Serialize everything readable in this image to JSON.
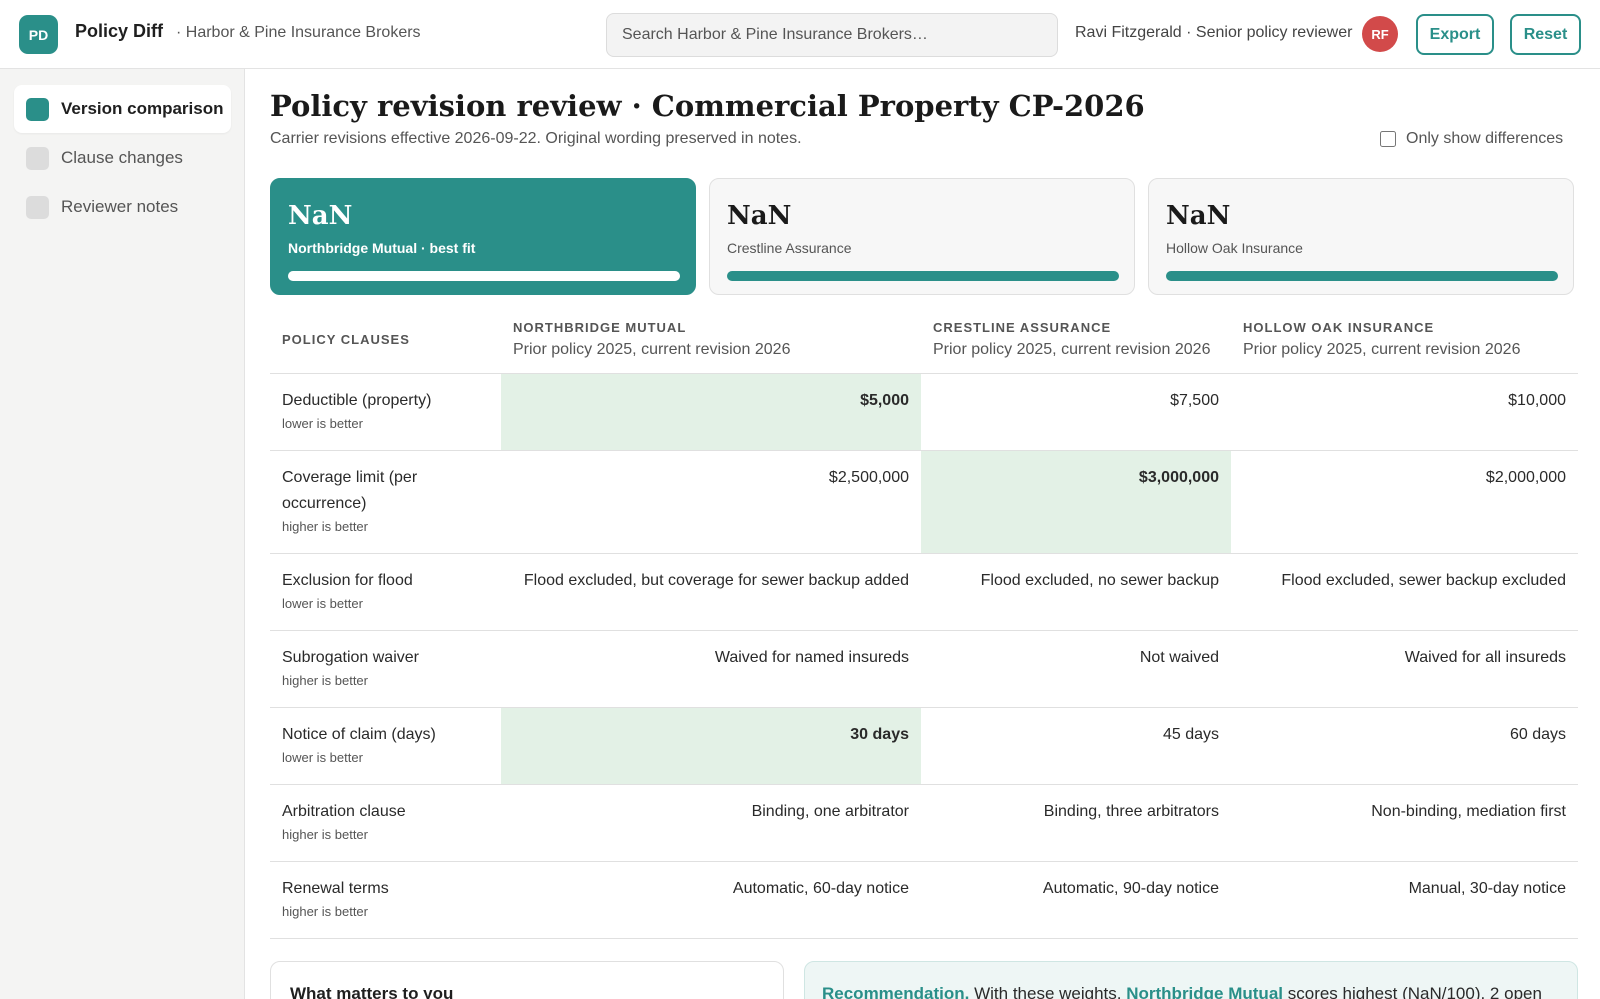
{
  "header": {
    "logo": "PD",
    "app_name": "Policy Diff",
    "org": "· Harbor & Pine Insurance Brokers",
    "search_placeholder": "Search Harbor & Pine Insurance Brokers…",
    "user": "Ravi Fitzgerald · Senior policy reviewer",
    "avatar": "RF",
    "export_label": "Export",
    "reset_label": "Reset"
  },
  "sidebar": {
    "items": [
      {
        "label": "Version comparison",
        "active": true
      },
      {
        "label": "Clause changes",
        "active": false
      },
      {
        "label": "Reviewer notes",
        "active": false
      }
    ]
  },
  "page": {
    "title": "Policy revision review · Commercial Property CP-2026",
    "subtitle": "Carrier revisions effective 2026-09-22. Original wording preserved in notes.",
    "diff_toggle_label": "Only show differences",
    "diff_toggle_checked": false
  },
  "score_cards": [
    {
      "score": "NaN",
      "name": "Northbridge Mutual · best fit",
      "best": true,
      "fill_fraction": 1.0
    },
    {
      "score": "NaN",
      "name": "Crestline Assurance",
      "best": false,
      "fill_fraction": 1.0
    },
    {
      "score": "NaN",
      "name": "Hollow Oak Insurance",
      "best": false,
      "fill_fraction": 1.0
    }
  ],
  "table": {
    "clauses_header": "POLICY CLAUSES",
    "carriers": [
      {
        "name": "NORTHBRIDGE MUTUAL",
        "sub": "Prior policy 2025, current revision 2026"
      },
      {
        "name": "CRESTLINE ASSURANCE",
        "sub": "Prior policy 2025, current revision 2026"
      },
      {
        "name": "HOLLOW OAK INSURANCE",
        "sub": "Prior policy 2025, current revision 2026"
      }
    ],
    "rows": [
      {
        "clause": "Deductible (property)",
        "hint": "lower is better",
        "values": [
          "$5,000",
          "$7,500",
          "$10,000"
        ],
        "best": 0,
        "worst": 2
      },
      {
        "clause": "Coverage limit (per occurrence)",
        "hint": "higher is better",
        "values": [
          "$2,500,000",
          "$3,000,000",
          "$2,000,000"
        ],
        "best": 1,
        "worst": 2
      },
      {
        "clause": "Exclusion for flood",
        "hint": "lower is better",
        "values": [
          "Flood excluded, but coverage for sewer backup added",
          "Flood excluded, no sewer backup",
          "Flood excluded, sewer backup excluded"
        ],
        "best": -1,
        "worst": -1
      },
      {
        "clause": "Subrogation waiver",
        "hint": "higher is better",
        "values": [
          "Waived for named insureds",
          "Not waived",
          "Waived for all insureds"
        ],
        "best": -1,
        "worst": -1
      },
      {
        "clause": "Notice of claim (days)",
        "hint": "lower is better",
        "values": [
          "30 days",
          "45 days",
          "60 days"
        ],
        "best": 0,
        "worst": 2
      },
      {
        "clause": "Arbitration clause",
        "hint": "higher is better",
        "values": [
          "Binding, one arbitrator",
          "Binding, three arbitrators",
          "Non-binding, mediation first"
        ],
        "best": -1,
        "worst": -1
      },
      {
        "clause": "Renewal terms",
        "hint": "higher is better",
        "values": [
          "Automatic, 60-day notice",
          "Automatic, 90-day notice",
          "Manual, 30-day notice"
        ],
        "best": -1,
        "worst": -1
      }
    ]
  },
  "weights_panel": {
    "title": "What matters to you"
  },
  "recommendation": {
    "lead": "Recommendation.",
    "text1": "With these weights,",
    "carrier": "Northbridge Mutual",
    "text2": "scores highest (NaN/100). 2 open"
  },
  "colors": {
    "accent": "#2a8f89",
    "best_cell": "#e3f1e6",
    "worst_text": "#c0463f",
    "avatar": "#d24a4a"
  }
}
